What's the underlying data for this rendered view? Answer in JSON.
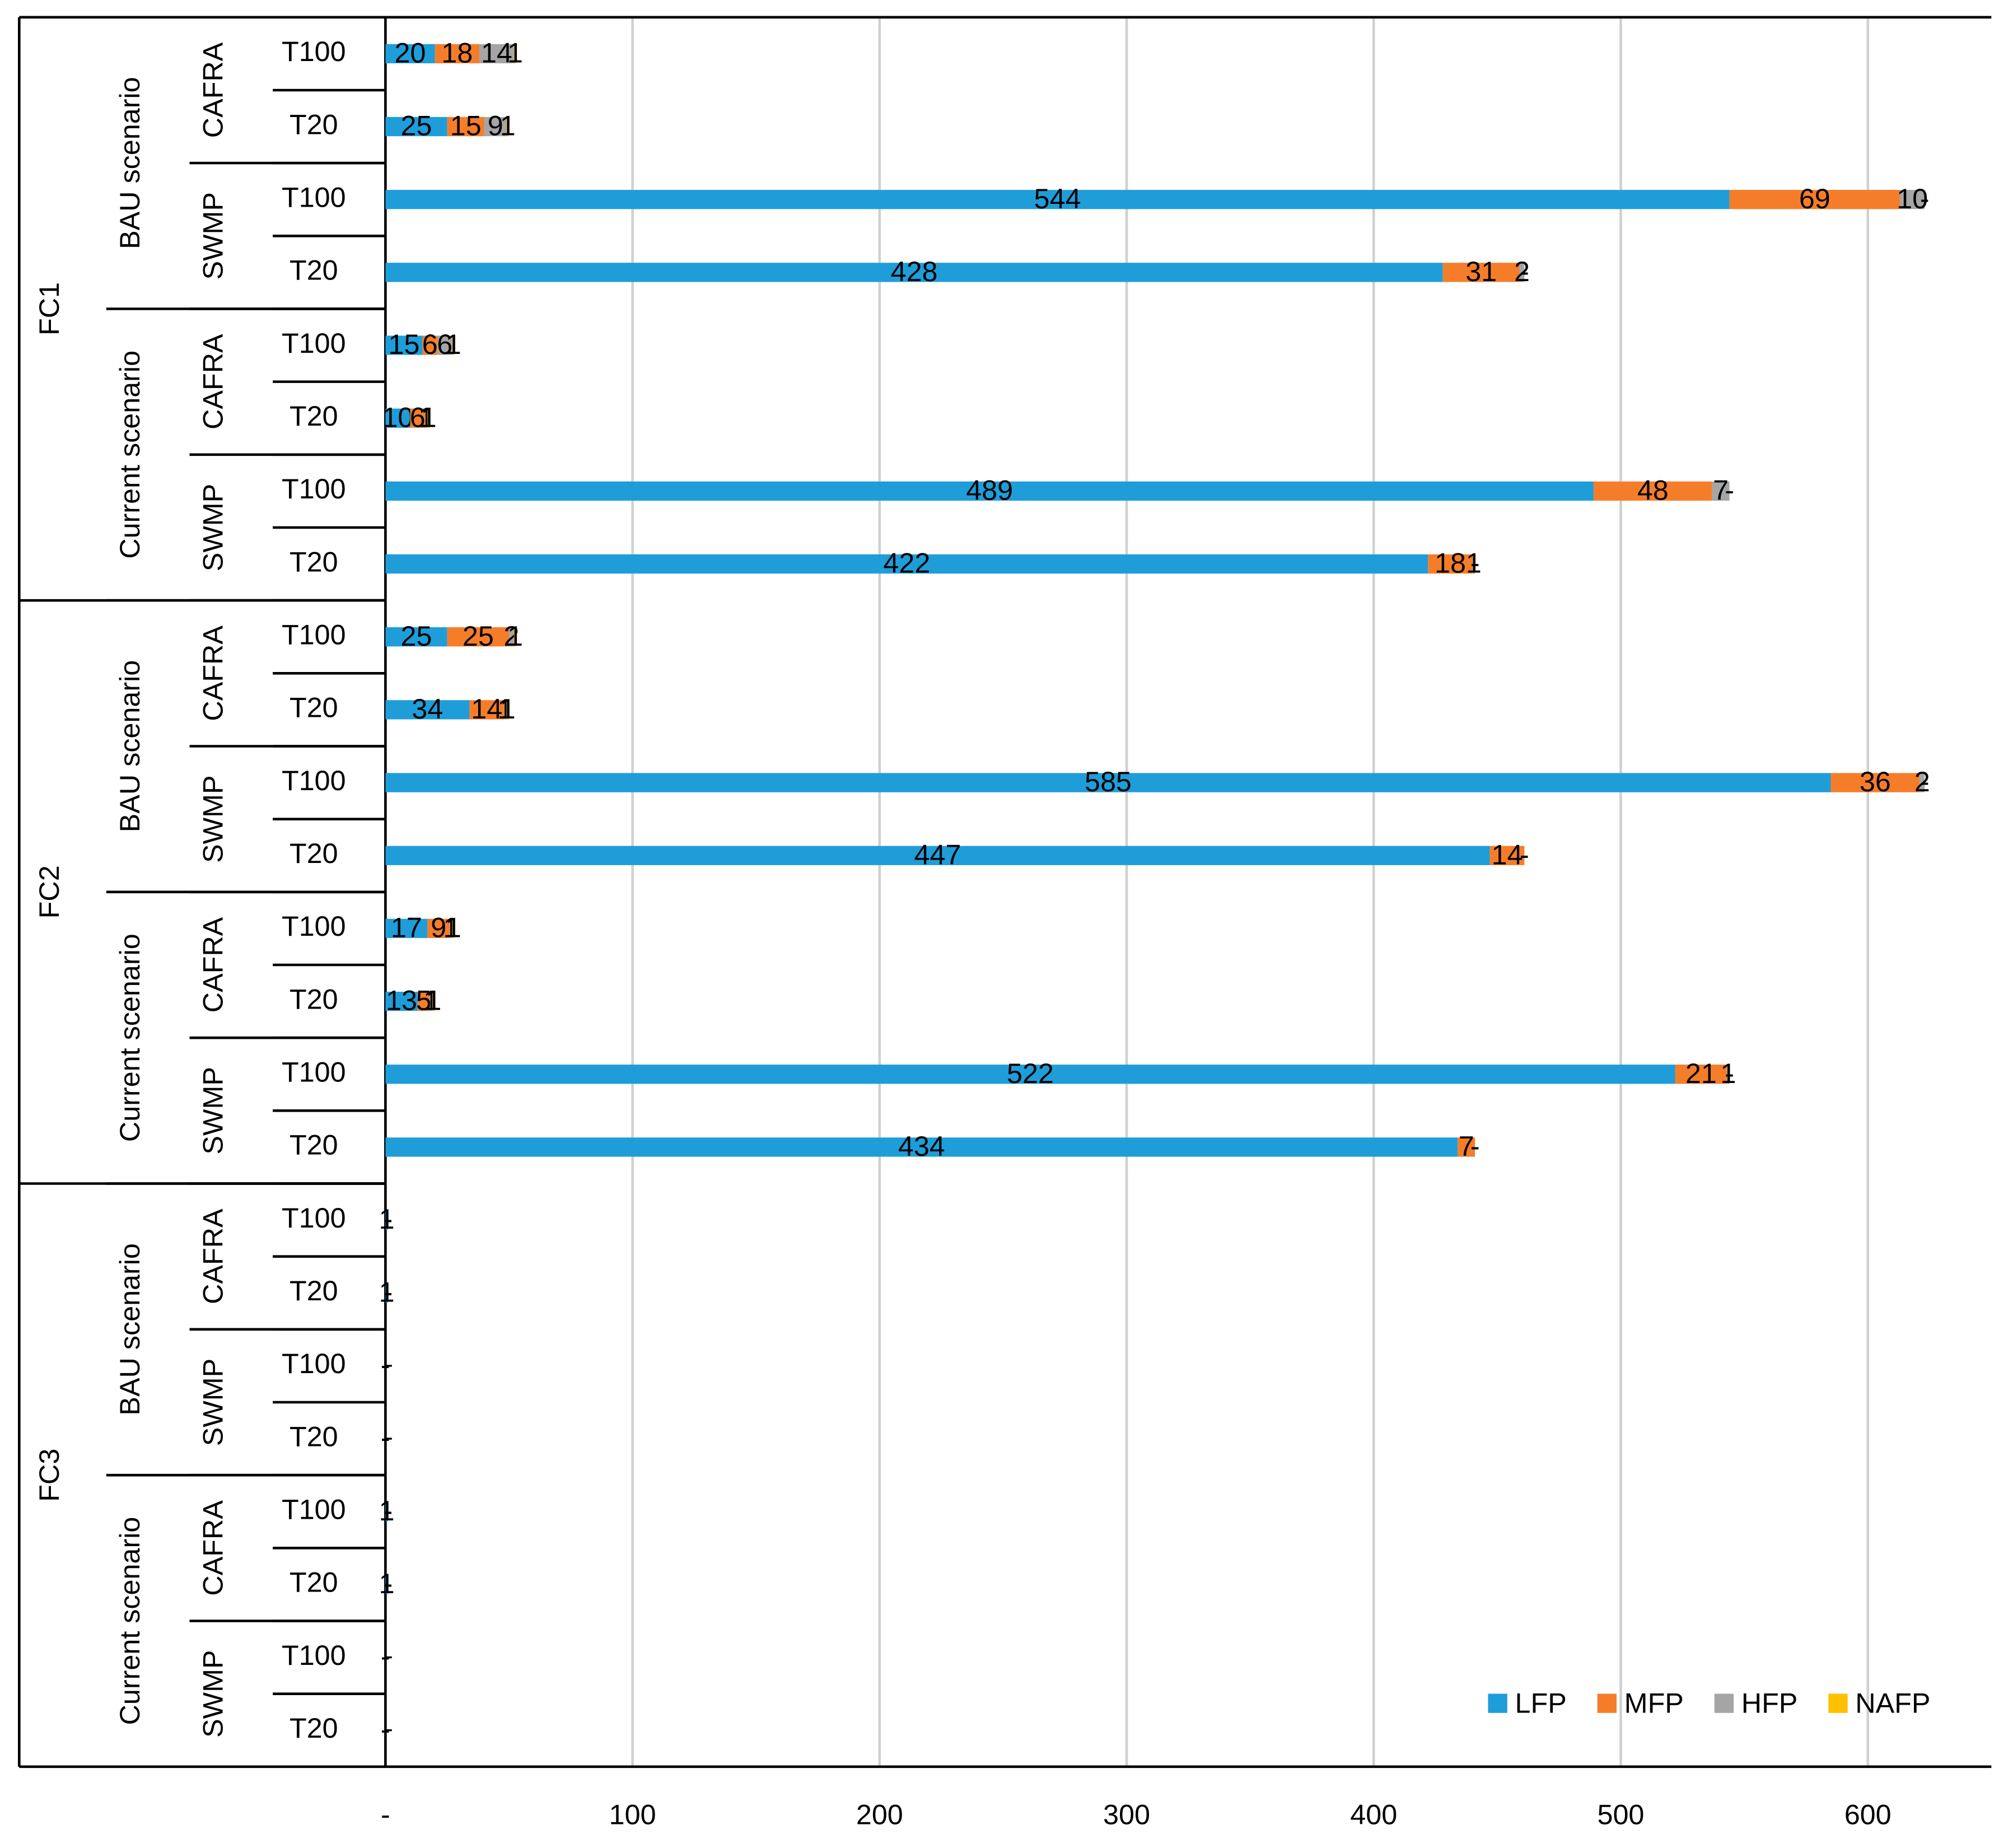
{
  "chart_data": {
    "type": "stacked-barh",
    "groups": [
      "FC1",
      "FC2",
      "FC3"
    ],
    "scenarios": [
      "BAU scenario",
      "Current scenario",
      "BAU scenario",
      "Current scenario",
      "BAU scenario",
      "Current scenario"
    ],
    "methods": [
      "CAFRA",
      "SWMP",
      "CAFRA",
      "SWMP",
      "CAFRA",
      "SWMP",
      "CAFRA",
      "SWMP",
      "CAFRA",
      "SWMP",
      "CAFRA",
      "SWMP"
    ],
    "categories": [
      "T100",
      "T20",
      "T100",
      "T20",
      "T100",
      "T20",
      "T100",
      "T20",
      "T100",
      "T20",
      "T100",
      "T20",
      "T100",
      "T20",
      "T100",
      "T20",
      "T100",
      "T20",
      "T100",
      "T20",
      "T100",
      "T20",
      "T100",
      "T20"
    ],
    "series": [
      {
        "name": "LFP",
        "color": "#1f9dd9",
        "values": [
          20,
          25,
          544,
          428,
          15,
          10,
          489,
          422,
          25,
          34,
          585,
          447,
          17,
          13,
          522,
          434,
          1,
          1,
          0,
          0,
          1,
          1,
          0,
          0
        ],
        "value_labels": [
          null,
          null,
          null,
          null,
          null,
          null,
          null,
          null,
          null,
          null,
          null,
          null,
          null,
          null,
          null,
          null,
          null,
          null,
          "-",
          "-",
          null,
          null,
          "-",
          "-"
        ]
      },
      {
        "name": "MFP",
        "color": "#f57d2a",
        "values": [
          18,
          15,
          69,
          31,
          6,
          6,
          48,
          18,
          25,
          14,
          36,
          14,
          9,
          5,
          21,
          7,
          0,
          0,
          0,
          0,
          0,
          0,
          0,
          0
        ],
        "value_labels": [
          null,
          null,
          null,
          null,
          null,
          null,
          null,
          null,
          null,
          null,
          null,
          null,
          null,
          null,
          null,
          null,
          "-",
          "-",
          "-",
          "-",
          "-",
          "-",
          "-",
          "-"
        ]
      },
      {
        "name": "HFP",
        "color": "#a5a5a5",
        "values": [
          14,
          9,
          10,
          2,
          6,
          1,
          7,
          1,
          2,
          1,
          2,
          0,
          1,
          1,
          1,
          0,
          0,
          0,
          0,
          0,
          0,
          0,
          0,
          0
        ],
        "value_labels": [
          null,
          null,
          null,
          null,
          null,
          null,
          null,
          null,
          null,
          null,
          null,
          "-",
          null,
          null,
          null,
          "-",
          "-",
          "-",
          "-",
          "-",
          "-",
          "-",
          "-",
          "-"
        ]
      },
      {
        "name": "NAFP",
        "color": "#ffc000",
        "values": [
          1,
          1,
          0,
          0,
          1,
          1,
          0,
          0,
          1,
          1,
          0,
          0,
          1,
          1,
          0,
          0,
          0,
          0,
          0,
          0,
          0,
          0,
          0,
          0
        ],
        "value_labels": [
          null,
          null,
          "-",
          "-",
          null,
          null,
          "-",
          "-",
          null,
          null,
          "-",
          "-",
          null,
          null,
          "-",
          "-",
          "-",
          "-",
          "-",
          "-",
          "-",
          "-",
          "-",
          "-"
        ]
      }
    ],
    "xlim": [
      0,
      650
    ],
    "xticks": [
      {
        "value": 0,
        "label": "-"
      },
      100,
      200,
      300,
      400,
      500,
      600
    ],
    "grid": true,
    "legend": "bottom-right"
  }
}
